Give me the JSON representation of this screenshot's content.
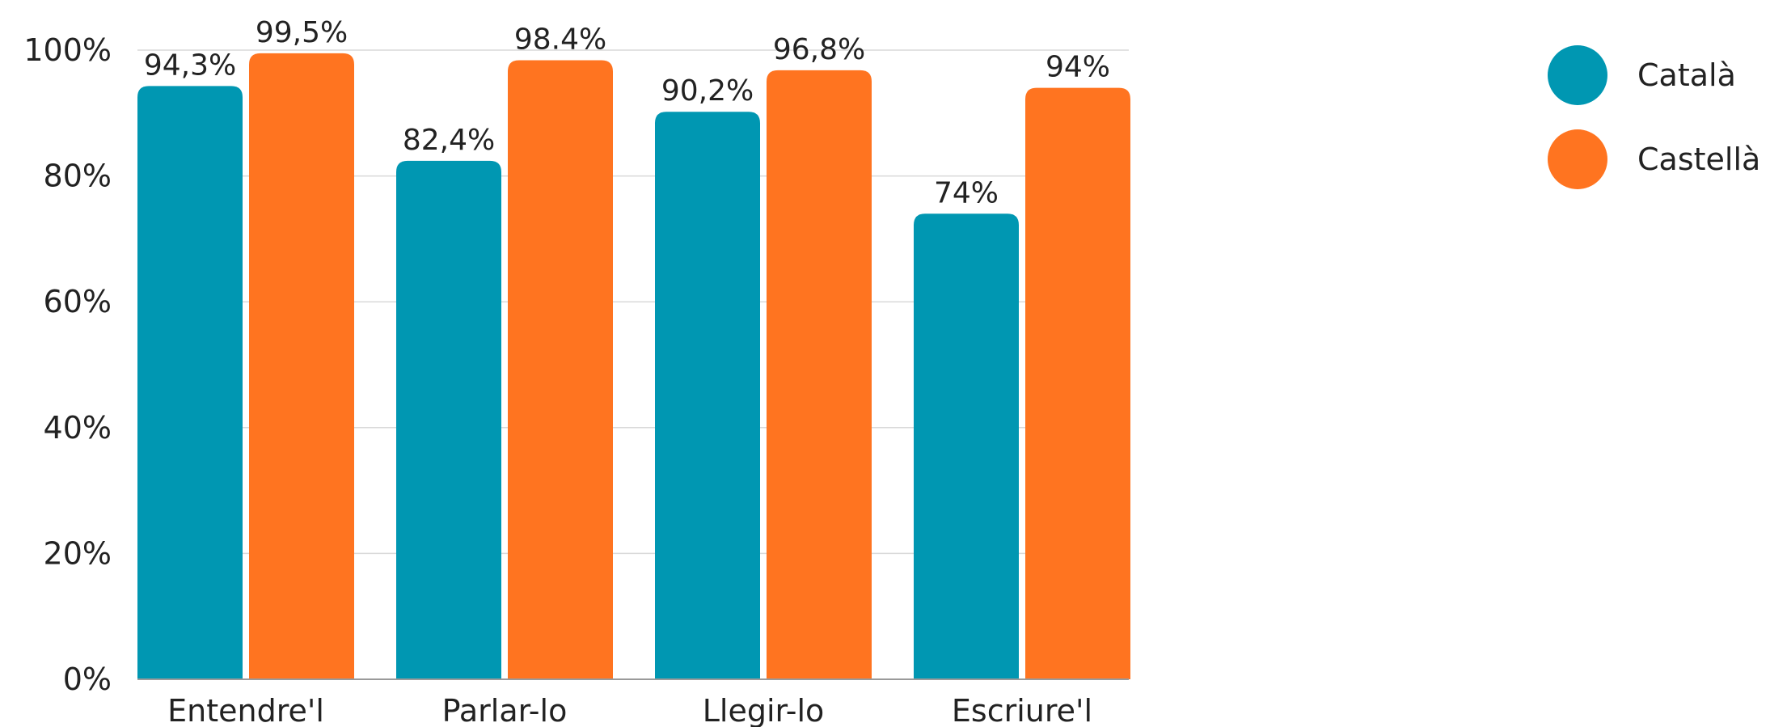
{
  "chart_data": {
    "type": "bar",
    "title": "",
    "xlabel": "",
    "ylabel": "",
    "ylim": [
      0,
      100
    ],
    "yticks": [
      0,
      20,
      40,
      60,
      80,
      100
    ],
    "ytick_labels": [
      "0%",
      "20%",
      "40%",
      "60%",
      "80%",
      "100%"
    ],
    "grid": true,
    "legend_position": "top-right",
    "categories": [
      "Entendre'l",
      "Parlar-lo",
      "Llegir-lo",
      "Escriure'l"
    ],
    "series": [
      {
        "name": "Català",
        "color": "#0097b2",
        "values": [
          94.3,
          82.4,
          90.2,
          74
        ],
        "labels": [
          "94,3%",
          "82,4%",
          "90,2%",
          "74%"
        ]
      },
      {
        "name": "Castellà",
        "color": "#ff7420",
        "values": [
          99.5,
          98.4,
          96.8,
          94
        ],
        "labels": [
          "99,5%",
          "98.4%",
          "96,8%",
          "94%"
        ]
      }
    ]
  }
}
